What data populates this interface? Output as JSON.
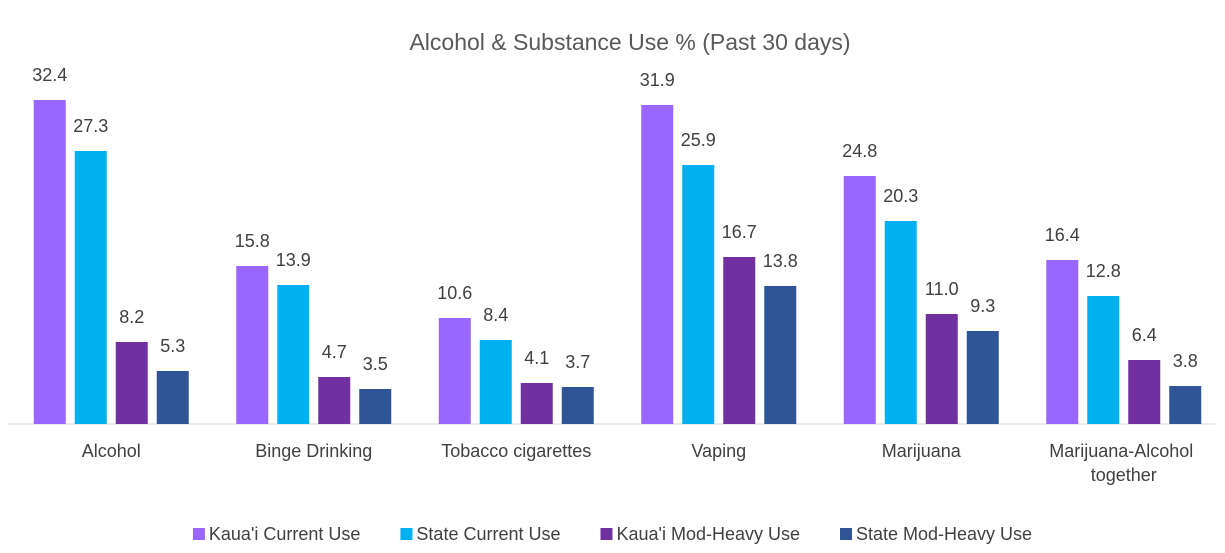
{
  "chart_data": {
    "type": "bar",
    "title": "Alcohol & Substance Use % (Past 30 days)",
    "categories": [
      "Alcohol",
      "Binge Drinking",
      "Tobacco cigarettes",
      "Vaping",
      "Marijuana",
      "Marijuana-Alcohol together"
    ],
    "series": [
      {
        "name": "Kaua'i Current Use",
        "color": "#9966ff",
        "values": [
          32.4,
          15.8,
          10.6,
          31.9,
          24.8,
          16.4
        ]
      },
      {
        "name": "State Current Use",
        "color": "#00b0f0",
        "values": [
          27.3,
          13.9,
          8.4,
          25.9,
          20.3,
          12.8
        ]
      },
      {
        "name": "Kaua'i Mod-Heavy Use",
        "color": "#7030a0",
        "values": [
          8.2,
          4.7,
          4.1,
          16.7,
          11.0,
          6.4
        ],
        "value_labels": [
          "8.2",
          "4.7",
          "4.1",
          "16.7",
          "11.0",
          "6.4"
        ]
      },
      {
        "name": "State Mod-Heavy Use",
        "color": "#2f5597",
        "values": [
          5.3,
          3.5,
          3.7,
          13.8,
          9.3,
          3.8
        ]
      }
    ],
    "ylim": [
      0,
      35
    ],
    "grid": false,
    "legend": "bottom"
  }
}
